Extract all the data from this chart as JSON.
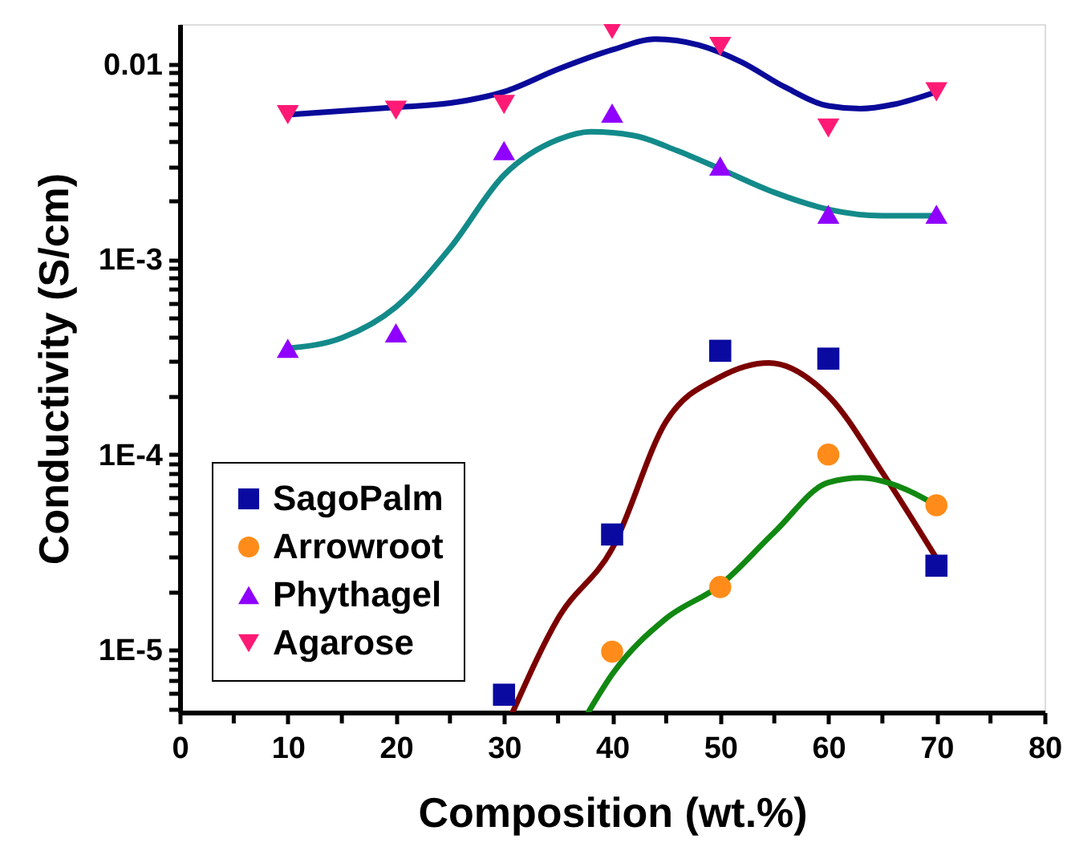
{
  "chart_data": {
    "type": "scatter",
    "xlabel": "Composition (wt.%)",
    "ylabel": "Conductivity (S/cm)",
    "log": "y",
    "grid": false,
    "legend": "bottom left",
    "xlim": [
      0,
      80
    ],
    "xticks": [
      0,
      {
        "value": 5,
        "label": null
      },
      10,
      {
        "value": 15,
        "label": null
      },
      20,
      {
        "value": 25,
        "label": null
      },
      30,
      {
        "value": 35,
        "label": null
      },
      40,
      {
        "value": 45,
        "label": null
      },
      50,
      {
        "value": 55,
        "label": null
      },
      60,
      {
        "value": 65,
        "label": null
      },
      70,
      {
        "value": 75,
        "label": null
      },
      80
    ],
    "ylim": [
      4.8e-06,
      0.016
    ],
    "yticks": [
      {
        "value": 5e-06,
        "label": null
      },
      {
        "value": 6e-06,
        "label": null
      },
      {
        "value": 7e-06,
        "label": null
      },
      {
        "value": 8e-06,
        "label": null
      },
      {
        "value": 9e-06,
        "label": null
      },
      {
        "value": 1e-05,
        "label": "1E-5"
      },
      {
        "value": 2e-05,
        "label": null
      },
      {
        "value": 3e-05,
        "label": null
      },
      {
        "value": 4e-05,
        "label": null
      },
      {
        "value": 5e-05,
        "label": null
      },
      {
        "value": 6e-05,
        "label": null
      },
      {
        "value": 7e-05,
        "label": null
      },
      {
        "value": 8e-05,
        "label": null
      },
      {
        "value": 9e-05,
        "label": null
      },
      {
        "value": 0.0001,
        "label": "1E-4"
      },
      {
        "value": 0.0002,
        "label": null
      },
      {
        "value": 0.0003,
        "label": null
      },
      {
        "value": 0.0004,
        "label": null
      },
      {
        "value": 0.0005,
        "label": null
      },
      {
        "value": 0.0006,
        "label": null
      },
      {
        "value": 0.0007,
        "label": null
      },
      {
        "value": 0.0008,
        "label": null
      },
      {
        "value": 0.0009,
        "label": null
      },
      {
        "value": 0.001,
        "label": "1E-3"
      },
      {
        "value": 0.002,
        "label": null
      },
      {
        "value": 0.003,
        "label": null
      },
      {
        "value": 0.004,
        "label": null
      },
      {
        "value": 0.005,
        "label": null
      },
      {
        "value": 0.006,
        "label": null
      },
      {
        "value": 0.007,
        "label": null
      },
      {
        "value": 0.008,
        "label": null
      },
      {
        "value": 0.009,
        "label": null
      },
      0.01
    ],
    "x": [
      10,
      20,
      30,
      40,
      50,
      60,
      70
    ],
    "series": [
      {
        "type": "line",
        "color": "#7b0000",
        "x": [
          30.8,
          35,
          40,
          45,
          50,
          54.5,
          60,
          65,
          70
        ],
        "values": [
          4.8e-06,
          1.45e-05,
          3.3e-05,
          0.000148,
          0.00025,
          0.000295,
          0.0002,
          8.1e-05,
          2.95e-05
        ]
      },
      {
        "type": "line",
        "color": "#118811",
        "x": [
          37.8,
          40,
          45,
          50,
          55,
          60,
          63,
          67,
          70
        ],
        "values": [
          4.8e-06,
          7.5e-06,
          1.45e-05,
          2.15e-05,
          4e-05,
          7.2e-05,
          7.6e-05,
          6.7e-05,
          5.5e-05
        ]
      },
      {
        "type": "line",
        "color": "#138a8a",
        "x": [
          10,
          15,
          20,
          25,
          30,
          35,
          38,
          42,
          46,
          50,
          55,
          60,
          65,
          70
        ],
        "values": [
          0.00035,
          0.000396,
          0.00057,
          0.00114,
          0.0027,
          0.0041,
          0.0045,
          0.0043,
          0.0036,
          0.0029,
          0.0022,
          0.0018,
          0.00167,
          0.00167
        ]
      },
      {
        "type": "line",
        "color": "#0a0a9a",
        "x": [
          10,
          20,
          25,
          30,
          35,
          40,
          44,
          48,
          52,
          56,
          60,
          63,
          66,
          70
        ],
        "values": [
          0.0055,
          0.006,
          0.0063,
          0.0072,
          0.0094,
          0.0118,
          0.0134,
          0.0125,
          0.0102,
          0.0076,
          0.0061,
          0.0059,
          0.0062,
          0.0072
        ]
      },
      {
        "name": "SagoPalm",
        "color": "#0a0aa0",
        "marker": "square",
        "x": [
          30,
          40,
          50,
          60,
          70
        ],
        "values": [
          5.9e-06,
          3.9e-05,
          0.00034,
          0.00031,
          2.7e-05
        ]
      },
      {
        "name": "Arrowroot",
        "color": "#ff8c1a",
        "marker": "circle",
        "x": [
          40,
          50,
          60,
          70
        ],
        "values": [
          9.8e-06,
          2.1e-05,
          0.0001,
          5.5e-05
        ]
      },
      {
        "name": "Phythagel",
        "color": "#8f00ff",
        "marker": "triangle",
        "values": [
          0.00035,
          0.00042,
          0.0036,
          0.0056,
          0.003,
          0.0017,
          0.0017
        ]
      },
      {
        "name": "Agarose",
        "color": "#ff1a75",
        "marker": "triangle-down",
        "values": [
          0.0055,
          0.0058,
          0.0062,
          0.015,
          0.0123,
          0.0047,
          0.0072
        ]
      }
    ]
  }
}
